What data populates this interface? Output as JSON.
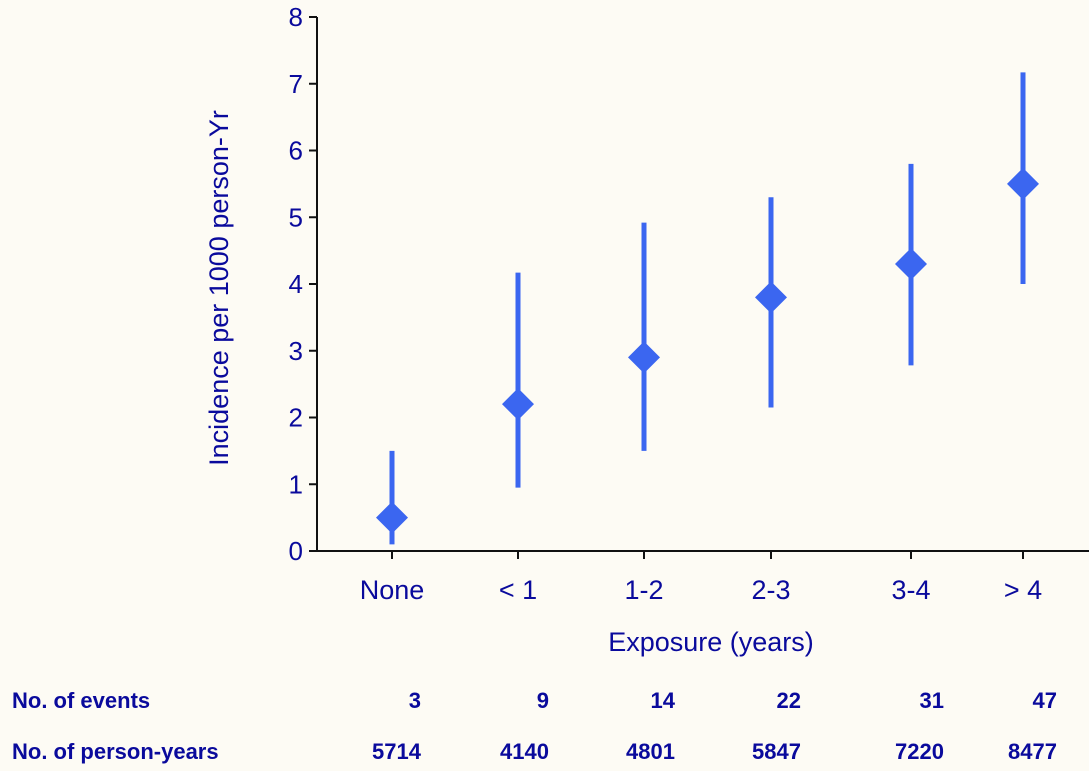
{
  "chart_data": {
    "type": "scatter",
    "categories": [
      "None",
      "< 1",
      "1-2",
      "2-3",
      "3-4",
      "> 4"
    ],
    "values": [
      0.5,
      2.2,
      2.9,
      3.8,
      4.3,
      5.5
    ],
    "ci_low": [
      0.1,
      0.95,
      1.5,
      2.15,
      2.78,
      4.0
    ],
    "ci_high": [
      1.5,
      4.17,
      4.92,
      5.3,
      5.8,
      7.17
    ],
    "xlabel": "Exposure (years)",
    "ylabel": "Incidence per 1000 person-Yr",
    "ylim": [
      0,
      8
    ],
    "yticks": [
      "0",
      "1",
      "2",
      "3",
      "4",
      "5",
      "6",
      "7",
      "8"
    ],
    "grid": false,
    "marker": "diamond",
    "color": "#3b66f0"
  },
  "table": {
    "rows": [
      {
        "label": "No. of events",
        "values": [
          "3",
          "9",
          "14",
          "22",
          "31",
          "47"
        ]
      },
      {
        "label": "No. of person-years",
        "values": [
          "5714",
          "4140",
          "4801",
          "5847",
          "7220",
          "8477"
        ]
      }
    ]
  },
  "colors": {
    "axis_text": "#0a0a9c",
    "table_text": "#0a0a9c",
    "background": "#fdfbf4"
  }
}
